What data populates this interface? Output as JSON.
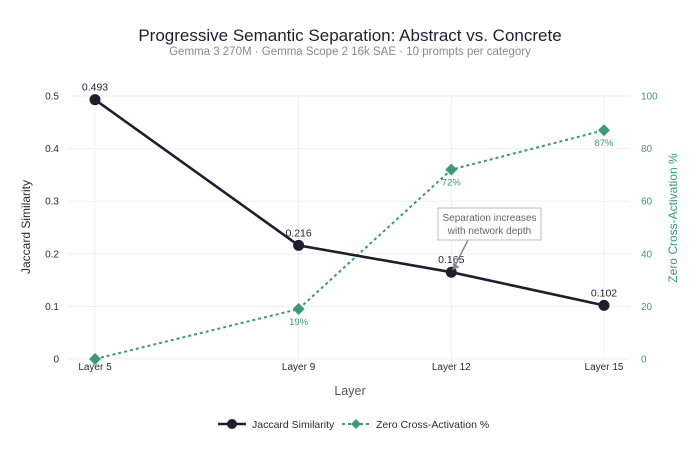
{
  "chart_data": {
    "type": "line",
    "title": "Progressive Semantic Separation: Abstract vs. Concrete",
    "subtitle": "Gemma 3 270M · Gemma Scope 2 16k SAE · 10 prompts per category",
    "xlabel": "Layer",
    "ylabel": "Jaccard Similarity",
    "y2label": "Zero Cross-Activation %",
    "categories": [
      "Layer 5",
      "Layer 9",
      "Layer 12",
      "Layer 15"
    ],
    "x": [
      5,
      9,
      12,
      15
    ],
    "ylim": [
      0,
      0.5
    ],
    "yticks": [
      0,
      0.1,
      0.2,
      0.3,
      0.4,
      0.5
    ],
    "ytick_labels": [
      "0",
      "0.1",
      "0.2",
      "0.3",
      "0.4",
      "0.5"
    ],
    "y2lim": [
      0,
      100
    ],
    "y2ticks": [
      0,
      20,
      40,
      60,
      80,
      100
    ],
    "y2tick_labels": [
      "0",
      "20",
      "40",
      "60",
      "80",
      "100"
    ],
    "grid": true,
    "legend_position": "bottom-center",
    "series": [
      {
        "name": "Jaccard Similarity",
        "axis": "left",
        "values": [
          0.493,
          0.216,
          0.165,
          0.102
        ],
        "labels": [
          "0.493",
          "0.216",
          "0.165",
          "0.102"
        ],
        "color": "#1e1e2e",
        "marker": "circle",
        "style": "solid"
      },
      {
        "name": "Zero Cross-Activation %",
        "axis": "right",
        "values": [
          0,
          19,
          72,
          87
        ],
        "labels": [
          "",
          "19%",
          "72%",
          "87%"
        ],
        "color": "#3a9a7a",
        "marker": "diamond",
        "style": "dotted"
      }
    ],
    "annotation": {
      "lines": [
        "Separation increases",
        "with network depth"
      ],
      "target_series": 0,
      "target_index": 2
    }
  }
}
